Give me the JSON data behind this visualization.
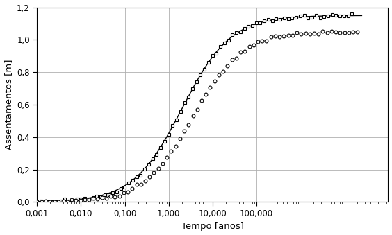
{
  "title": "",
  "xlabel": "Tempo [anos]",
  "ylabel": "Assentamentos [m]",
  "ylim": [
    0.0,
    1.2
  ],
  "yticks": [
    0.0,
    0.2,
    0.4,
    0.6,
    0.8,
    1.0,
    1.2
  ],
  "xtick_labels": [
    "0,001",
    "0,010",
    "0,100",
    "1,000",
    "10,000",
    "100,000"
  ],
  "xtick_values": [
    0.001,
    0.01,
    0.1,
    1.0,
    10.0,
    100.0
  ],
  "background": "#ffffff",
  "line_color": "#000000",
  "figsize": [
    5.64,
    3.39
  ],
  "dpi": 100,
  "S_max_line": 1.15,
  "S_max_circles": 1.05,
  "S_max_squares": 1.15,
  "t50_line": 2.0,
  "t50_circles": 3.5,
  "t50_squares": 2.0,
  "k_line": 1.8,
  "k_circles": 1.8,
  "k_squares": 1.8
}
